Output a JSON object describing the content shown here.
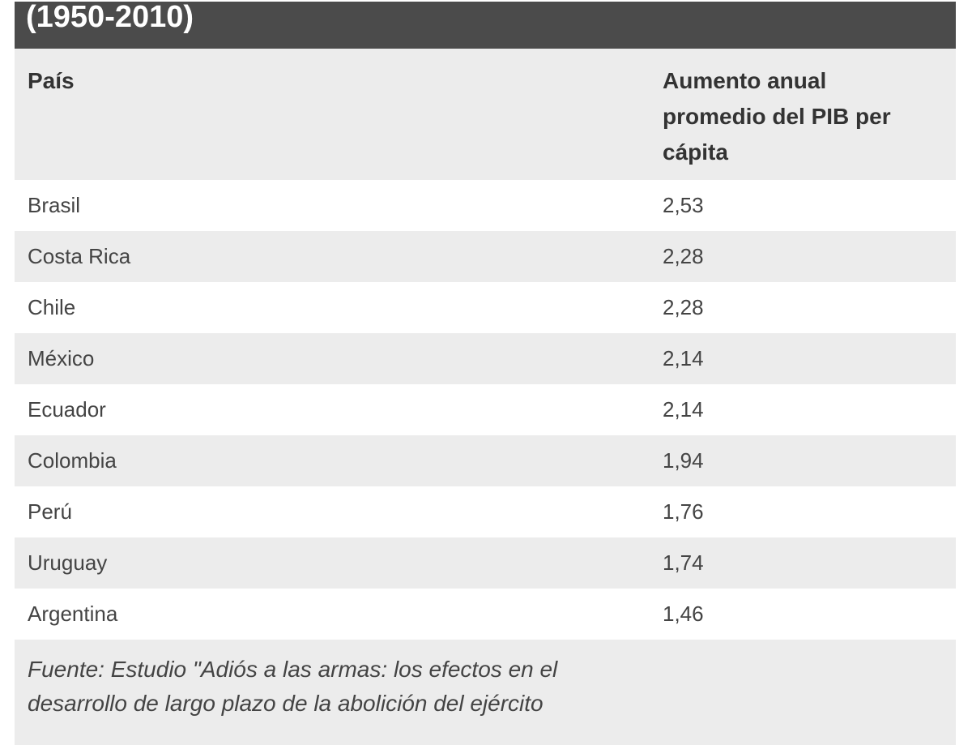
{
  "header": {
    "title": "(1950-2010)"
  },
  "table": {
    "columns": [
      "País",
      "Aumento anual promedio del PIB per cápita"
    ],
    "rows": [
      [
        "Brasil",
        "2,53"
      ],
      [
        "Costa Rica",
        "2,28"
      ],
      [
        "Chile",
        "2,28"
      ],
      [
        "México",
        "2,14"
      ],
      [
        "Ecuador",
        "2,14"
      ],
      [
        "Colombia",
        "1,94"
      ],
      [
        "Perú",
        "1,76"
      ],
      [
        "Uruguay",
        "1,74"
      ],
      [
        "Argentina",
        "1,46"
      ]
    ]
  },
  "note": {
    "lines": [
      "Fuente: Estudio \"Adiós a las armas: los efectos en el",
      "desarrollo de largo plazo de la abolición del ejército"
    ]
  }
}
